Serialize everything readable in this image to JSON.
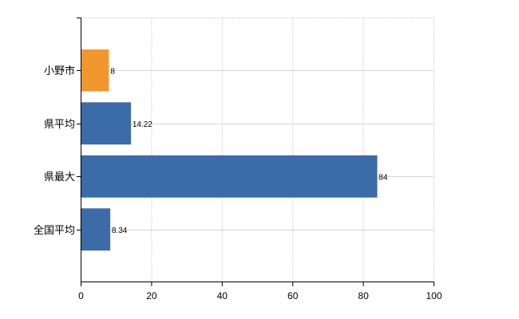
{
  "chart_data": {
    "type": "bar",
    "orientation": "horizontal",
    "title": "",
    "xlabel": "",
    "ylabel": "",
    "categories": [
      "小野市",
      "県平均",
      "県最大",
      "全国平均"
    ],
    "values": [
      8,
      14.22,
      84,
      8.34
    ],
    "value_labels": [
      "8",
      "14.22",
      "84",
      "8.34"
    ],
    "bar_colors": [
      "#f0962e",
      "#3c6ca8",
      "#3c6ca8",
      "#3c6ca8"
    ],
    "xlim": [
      0,
      100
    ],
    "xticks": [
      0,
      20,
      40,
      60,
      80,
      100
    ],
    "xtick_labels": [
      "0",
      "20",
      "40",
      "60",
      "80",
      "100"
    ],
    "grid": true,
    "legend": "none"
  }
}
